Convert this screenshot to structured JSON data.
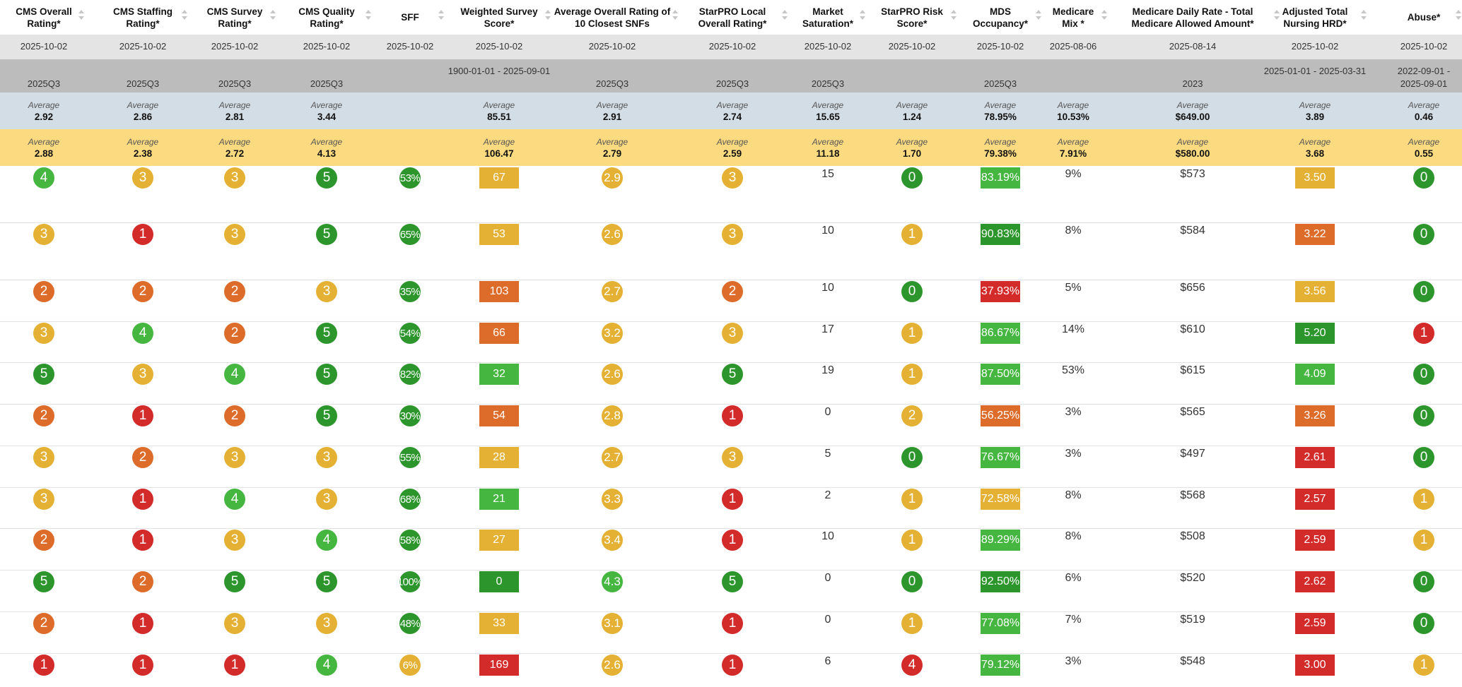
{
  "colors": {
    "green_dark": "#2c962c",
    "green_light": "#45b640",
    "yellow": "#e5b134",
    "orange": "#dd6b2a",
    "red": "#d32a2a"
  },
  "columns": [
    {
      "label": "CMS Overall Rating*",
      "date": "2025-10-02",
      "period": "2025Q3",
      "avg1": "2.92",
      "avg2": "2.88"
    },
    {
      "label": "CMS Staffing Rating*",
      "date": "2025-10-02",
      "period": "2025Q3",
      "avg1": "2.86",
      "avg2": "2.38"
    },
    {
      "label": "CMS Survey Rating*",
      "date": "2025-10-02",
      "period": "2025Q3",
      "avg1": "2.81",
      "avg2": "2.72"
    },
    {
      "label": "CMS Quality Rating*",
      "date": "2025-10-02",
      "period": "2025Q3",
      "avg1": "3.44",
      "avg2": "4.13"
    },
    {
      "label": "SFF",
      "date": "2025-10-02",
      "period": "",
      "avg1": "",
      "avg2": ""
    },
    {
      "label": "Weighted Survey Score*",
      "date": "2025-10-02",
      "period": "1900-01-01 - 2025-09-01",
      "avg1": "85.51",
      "avg2": "106.47"
    },
    {
      "label": "Average Overall Rating of 10 Closest SNFs",
      "date": "2025-10-02",
      "period": "2025Q3",
      "avg1": "2.91",
      "avg2": "2.79"
    },
    {
      "label": "StarPRO Local Overall Rating*",
      "date": "2025-10-02",
      "period": "2025Q3",
      "avg1": "2.74",
      "avg2": "2.59"
    },
    {
      "label": "Market Saturation*",
      "date": "2025-10-02",
      "period": "2025Q3",
      "avg1": "15.65",
      "avg2": "11.18"
    },
    {
      "label": "StarPRO Risk Score*",
      "date": "2025-10-02",
      "period": "",
      "avg1": "1.24",
      "avg2": "1.70"
    },
    {
      "label": "MDS Occupancy*",
      "date": "2025-10-02",
      "period": "2025Q3",
      "avg1": "78.95%",
      "avg2": "79.38%"
    },
    {
      "label": "Medicare Mix *",
      "date": "2025-08-06",
      "period": "",
      "avg1": "10.53%",
      "avg2": "7.91%"
    },
    {
      "label": "Medicare Daily Rate - Total Medicare Allowed Amount*",
      "date": "2025-08-14",
      "period": "2023",
      "avg1": "$649.00",
      "avg2": "$580.00"
    },
    {
      "label": "Adjusted Total Nursing HRD*",
      "date": "2025-10-02",
      "period": "2025-01-01 - 2025-03-31",
      "avg1": "3.89",
      "avg2": "3.68"
    },
    {
      "label": "Abuse*",
      "date": "2025-10-02",
      "period": "2022-09-01 - 2025-09-01",
      "avg1": "0.46",
      "avg2": "0.55"
    }
  ],
  "avg_label": "Average",
  "rows": [
    {
      "overall": "4",
      "staffing": "3",
      "survey": "3",
      "quality": "5",
      "sff": "53%",
      "wss": "67",
      "avg10": "2.9",
      "local": "3",
      "market": "15",
      "risk": "0",
      "mds": "83.19%",
      "medicare_mix": "9%",
      "daily_rate": "$573",
      "hrd": "3.50",
      "abuse": "0"
    },
    {
      "overall": "3",
      "staffing": "1",
      "survey": "3",
      "quality": "5",
      "sff": "65%",
      "wss": "53",
      "avg10": "2.6",
      "local": "3",
      "market": "10",
      "risk": "1",
      "mds": "90.83%",
      "medicare_mix": "8%",
      "daily_rate": "$584",
      "hrd": "3.22",
      "abuse": "0"
    },
    {
      "overall": "2",
      "staffing": "2",
      "survey": "2",
      "quality": "3",
      "sff": "35%",
      "wss": "103",
      "avg10": "2.7",
      "local": "2",
      "market": "10",
      "risk": "0",
      "mds": "37.93%",
      "medicare_mix": "5%",
      "daily_rate": "$656",
      "hrd": "3.56",
      "abuse": "0"
    },
    {
      "overall": "3",
      "staffing": "4",
      "survey": "2",
      "quality": "5",
      "sff": "54%",
      "wss": "66",
      "avg10": "3.2",
      "local": "3",
      "market": "17",
      "risk": "1",
      "mds": "86.67%",
      "medicare_mix": "14%",
      "daily_rate": "$610",
      "hrd": "5.20",
      "abuse": "1"
    },
    {
      "overall": "5",
      "staffing": "3",
      "survey": "4",
      "quality": "5",
      "sff": "82%",
      "wss": "32",
      "avg10": "2.6",
      "local": "5",
      "market": "19",
      "risk": "1",
      "mds": "87.50%",
      "medicare_mix": "53%",
      "daily_rate": "$615",
      "hrd": "4.09",
      "abuse": "0"
    },
    {
      "overall": "2",
      "staffing": "1",
      "survey": "2",
      "quality": "5",
      "sff": "30%",
      "wss": "54",
      "avg10": "2.8",
      "local": "1",
      "market": "0",
      "risk": "2",
      "mds": "56.25%",
      "medicare_mix": "3%",
      "daily_rate": "$565",
      "hrd": "3.26",
      "abuse": "0"
    },
    {
      "overall": "3",
      "staffing": "2",
      "survey": "3",
      "quality": "3",
      "sff": "55%",
      "wss": "28",
      "avg10": "2.7",
      "local": "3",
      "market": "5",
      "risk": "0",
      "mds": "76.67%",
      "medicare_mix": "3%",
      "daily_rate": "$497",
      "hrd": "2.61",
      "abuse": "0"
    },
    {
      "overall": "3",
      "staffing": "1",
      "survey": "4",
      "quality": "3",
      "sff": "68%",
      "wss": "21",
      "avg10": "3.3",
      "local": "1",
      "market": "2",
      "risk": "1",
      "mds": "72.58%",
      "medicare_mix": "8%",
      "daily_rate": "$568",
      "hrd": "2.57",
      "abuse": "1"
    },
    {
      "overall": "2",
      "staffing": "1",
      "survey": "3",
      "quality": "4",
      "sff": "58%",
      "wss": "27",
      "avg10": "3.4",
      "local": "1",
      "market": "10",
      "risk": "1",
      "mds": "89.29%",
      "medicare_mix": "8%",
      "daily_rate": "$508",
      "hrd": "2.59",
      "abuse": "1"
    },
    {
      "overall": "5",
      "staffing": "2",
      "survey": "5",
      "quality": "5",
      "sff": "100%",
      "wss": "0",
      "avg10": "4.3",
      "local": "5",
      "market": "0",
      "risk": "0",
      "mds": "92.50%",
      "medicare_mix": "6%",
      "daily_rate": "$520",
      "hrd": "2.62",
      "abuse": "0"
    },
    {
      "overall": "2",
      "staffing": "1",
      "survey": "3",
      "quality": "3",
      "sff": "48%",
      "wss": "33",
      "avg10": "3.1",
      "local": "1",
      "market": "0",
      "risk": "1",
      "mds": "77.08%",
      "medicare_mix": "7%",
      "daily_rate": "$519",
      "hrd": "2.59",
      "abuse": "0"
    },
    {
      "overall": "1",
      "staffing": "1",
      "survey": "1",
      "quality": "4",
      "sff": "6%",
      "wss": "169",
      "avg10": "2.6",
      "local": "1",
      "market": "6",
      "risk": "4",
      "mds": "79.12%",
      "medicare_mix": "3%",
      "daily_rate": "$548",
      "hrd": "3.00",
      "abuse": "1"
    }
  ],
  "cell_colors": [
    [
      "gl",
      "y",
      "y",
      "gd",
      "gd",
      "y",
      "y",
      "y",
      "",
      "gd",
      "gl",
      "",
      "",
      "y",
      "gd"
    ],
    [
      "y",
      "r",
      "y",
      "gd",
      "gd",
      "y",
      "y",
      "y",
      "",
      "y",
      "gd",
      "",
      "",
      "o",
      "gd"
    ],
    [
      "o",
      "o",
      "o",
      "y",
      "gd",
      "o",
      "y",
      "o",
      "",
      "gd",
      "r",
      "",
      "",
      "y",
      "gd"
    ],
    [
      "y",
      "gl",
      "o",
      "gd",
      "gd",
      "o",
      "y",
      "y",
      "",
      "y",
      "gl",
      "",
      "",
      "gd",
      "r"
    ],
    [
      "gd",
      "y",
      "gl",
      "gd",
      "gd",
      "gl",
      "y",
      "gd",
      "",
      "y",
      "gl",
      "",
      "",
      "gl",
      "gd"
    ],
    [
      "o",
      "r",
      "o",
      "gd",
      "gd",
      "o",
      "y",
      "r",
      "",
      "y",
      "o",
      "",
      "",
      "o",
      "gd"
    ],
    [
      "y",
      "o",
      "y",
      "y",
      "gd",
      "y",
      "y",
      "y",
      "",
      "gd",
      "gl",
      "",
      "",
      "r",
      "gd"
    ],
    [
      "y",
      "r",
      "gl",
      "y",
      "gd",
      "gl",
      "y",
      "r",
      "",
      "y",
      "y",
      "",
      "",
      "r",
      "y"
    ],
    [
      "o",
      "r",
      "y",
      "gl",
      "gd",
      "y",
      "y",
      "r",
      "",
      "y",
      "gl",
      "",
      "",
      "r",
      "y"
    ],
    [
      "gd",
      "o",
      "gd",
      "gd",
      "gd",
      "gd",
      "gl",
      "gd",
      "",
      "gd",
      "gd",
      "",
      "",
      "r",
      "gd"
    ],
    [
      "o",
      "r",
      "y",
      "y",
      "gd",
      "y",
      "y",
      "r",
      "",
      "y",
      "gl",
      "",
      "",
      "r",
      "gd"
    ],
    [
      "r",
      "r",
      "r",
      "gl",
      "y",
      "r",
      "y",
      "r",
      "",
      "r",
      "gl",
      "",
      "",
      "r",
      "y"
    ]
  ]
}
